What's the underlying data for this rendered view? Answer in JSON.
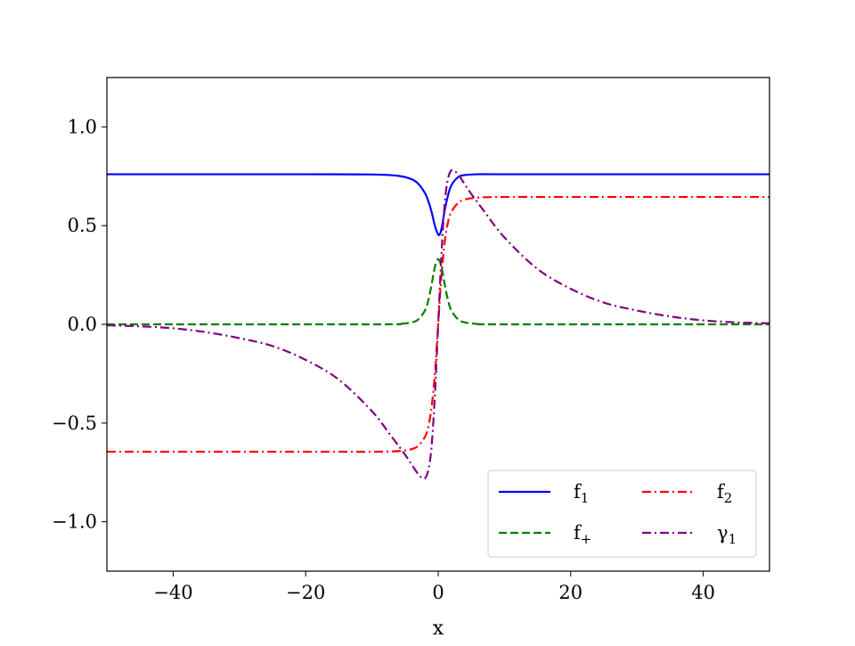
{
  "chart_data": {
    "type": "line",
    "title": "",
    "xlabel": "x",
    "ylabel": "",
    "xlim": [
      -50,
      50
    ],
    "ylim": [
      -1.25,
      1.25
    ],
    "x_ticks": [
      -40,
      -20,
      0,
      20,
      40
    ],
    "x_tick_labels": [
      "−40",
      "−20",
      "0",
      "20",
      "40"
    ],
    "y_ticks": [
      -1.0,
      -0.5,
      0.0,
      0.5,
      1.0
    ],
    "y_tick_labels": [
      "−1.0",
      "−0.5",
      "0.0",
      "0.5",
      "1.0"
    ],
    "grid": false,
    "legend": {
      "placement": "lower-right",
      "columns": 2
    },
    "series": [
      {
        "key": "f1",
        "name": "f",
        "name_sub": "1",
        "color": "#0000ff",
        "dash": "solid",
        "x": [
          -50,
          -20,
          -10,
          -6,
          -4,
          -3,
          -2,
          -1.5,
          -1,
          -0.5,
          0,
          0.3,
          0.6,
          1,
          1.5,
          2,
          3,
          4,
          6,
          10,
          20,
          50
        ],
        "y": [
          0.76,
          0.76,
          0.759,
          0.752,
          0.735,
          0.712,
          0.665,
          0.625,
          0.57,
          0.5,
          0.455,
          0.46,
          0.5,
          0.58,
          0.655,
          0.705,
          0.745,
          0.756,
          0.76,
          0.76,
          0.76,
          0.76
        ]
      },
      {
        "key": "f2",
        "name": "f",
        "name_sub": "2",
        "color": "#ff0000",
        "dash": "dashdot",
        "x": [
          -50,
          -20,
          -10,
          -6,
          -4,
          -3,
          -2,
          -1.5,
          -1,
          -0.5,
          0,
          0.5,
          1,
          1.5,
          2,
          3,
          4,
          6,
          10,
          20,
          50
        ],
        "y": [
          -0.645,
          -0.645,
          -0.645,
          -0.642,
          -0.632,
          -0.615,
          -0.57,
          -0.52,
          -0.42,
          -0.25,
          0.0,
          0.25,
          0.42,
          0.52,
          0.57,
          0.615,
          0.632,
          0.642,
          0.645,
          0.645,
          0.645
        ]
      },
      {
        "key": "fplus",
        "name": "f",
        "name_sub": "+",
        "color": "#008000",
        "dash": "dashed",
        "x": [
          -50,
          -10,
          -6,
          -4,
          -3,
          -2,
          -1.5,
          -1,
          -0.5,
          0,
          0.5,
          1,
          1.5,
          2,
          3,
          4,
          6,
          10,
          50
        ],
        "y": [
          0.0,
          0.0,
          0.002,
          0.01,
          0.025,
          0.07,
          0.12,
          0.2,
          0.29,
          0.33,
          0.29,
          0.2,
          0.12,
          0.07,
          0.025,
          0.01,
          0.002,
          0.0,
          0.0
        ]
      },
      {
        "key": "gamma1",
        "name": "γ",
        "name_sub": "1",
        "color": "#800080",
        "dash": "dashdot",
        "x": [
          -50,
          -45,
          -40,
          -35,
          -30,
          -25,
          -20,
          -15,
          -10,
          -7,
          -5,
          -4,
          -3,
          -2.5,
          -2,
          -1.5,
          -1,
          -0.5,
          0,
          0.5,
          1,
          1.5,
          2,
          2.5,
          3,
          4,
          5,
          7,
          10,
          15,
          20,
          25,
          30,
          35,
          40,
          45,
          50
        ],
        "y": [
          -0.005,
          -0.01,
          -0.02,
          -0.04,
          -0.07,
          -0.11,
          -0.18,
          -0.28,
          -0.44,
          -0.57,
          -0.66,
          -0.71,
          -0.76,
          -0.775,
          -0.78,
          -0.74,
          -0.62,
          -0.36,
          0.0,
          0.36,
          0.62,
          0.74,
          0.78,
          0.775,
          0.76,
          0.71,
          0.66,
          0.57,
          0.44,
          0.28,
          0.18,
          0.11,
          0.07,
          0.04,
          0.02,
          0.01,
          0.005
        ]
      }
    ]
  }
}
